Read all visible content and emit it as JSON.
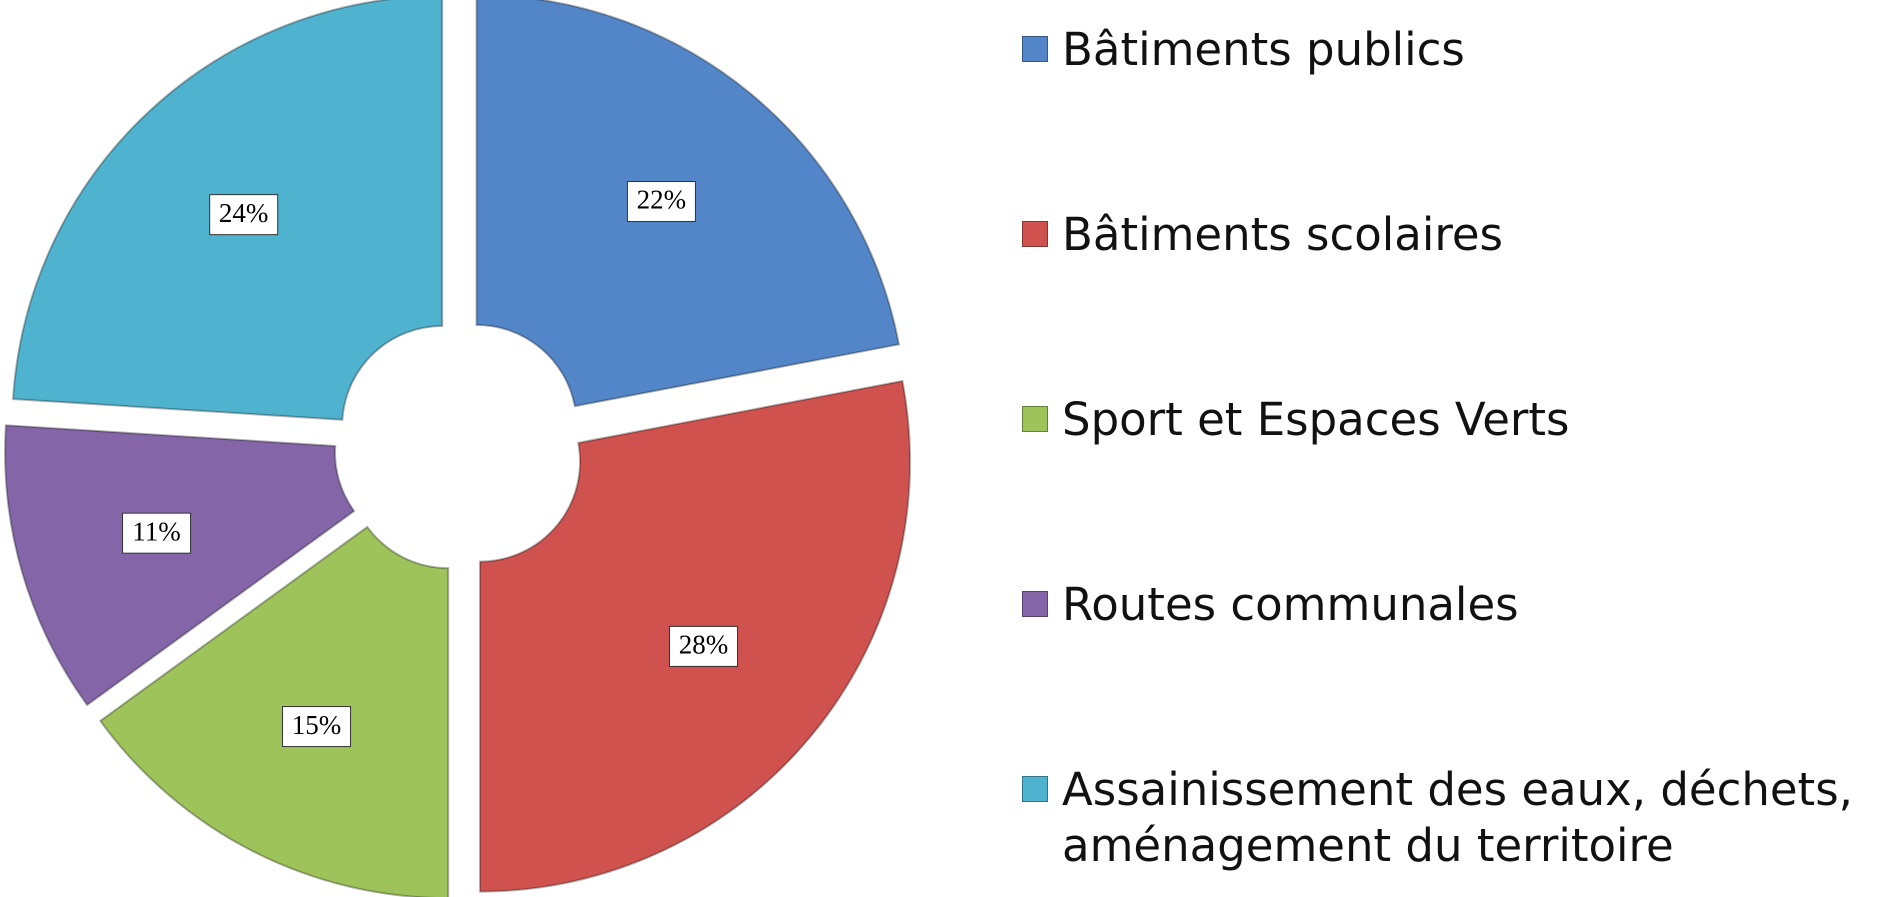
{
  "chart_data": {
    "type": "donut",
    "categories": [
      "Bâtiments publics",
      "Bâtiments scolaires",
      "Sport et Espaces Verts",
      "Routes communales",
      "Assainissement des eaux, déchets, aménagement du territoire"
    ],
    "values": [
      22,
      28,
      15,
      11,
      24
    ],
    "value_labels": [
      "22%",
      "28%",
      "15%",
      "11%",
      "24%"
    ],
    "colors": [
      "#5286c8",
      "#cf524f",
      "#9dc35a",
      "#8466a8",
      "#4fb3cf"
    ],
    "legend": "right"
  }
}
